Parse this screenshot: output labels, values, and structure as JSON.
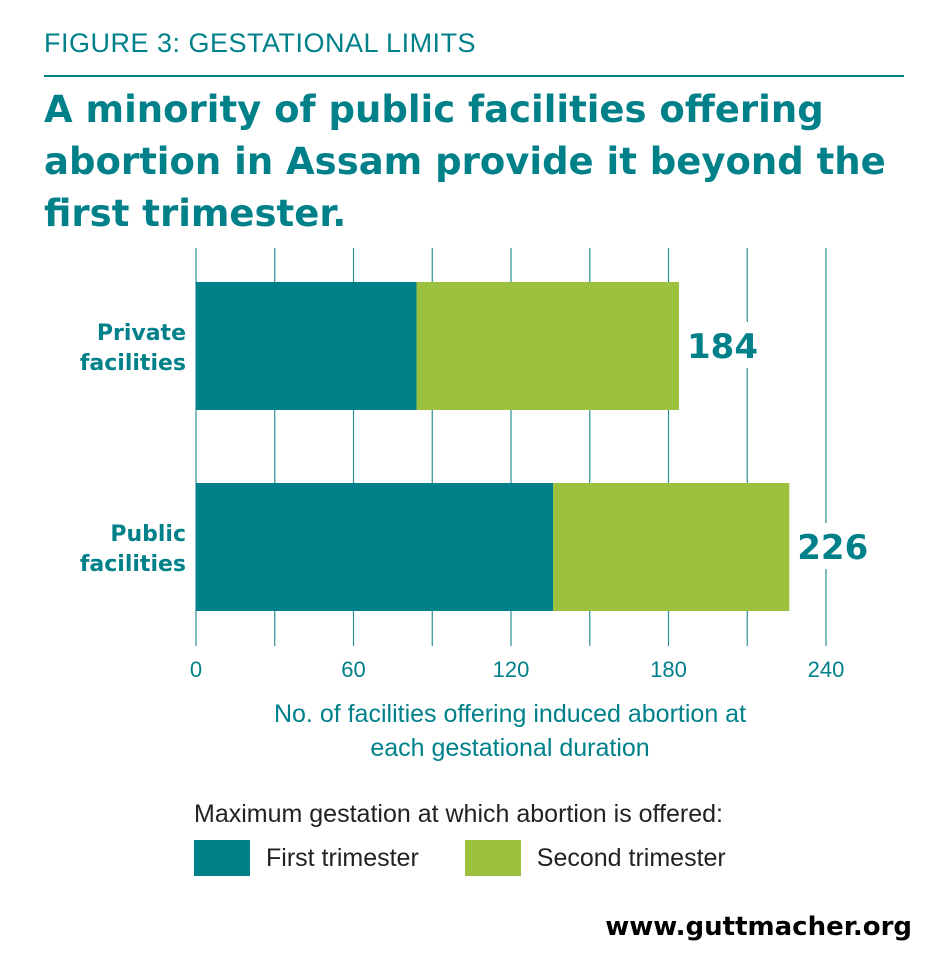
{
  "figure_label": "FIGURE 3: GESTATIONAL LIMITS",
  "headline": "A minority of public facilities offering abortion in Assam provide it beyond the first trimester.",
  "source": "www.guttmacher.org",
  "legend": {
    "title": "Maximum gestation at which abortion is offered:",
    "items": [
      {
        "label": "First trimester",
        "color": "#00818a"
      },
      {
        "label": "Second trimester",
        "color": "#9cc13e"
      }
    ]
  },
  "chart_data": {
    "type": "bar",
    "orientation": "horizontal",
    "stacked": true,
    "categories": [
      "Private facilities",
      "Public facilities"
    ],
    "category_lines": [
      [
        "Private",
        "facilities"
      ],
      [
        "Public",
        "facilities"
      ]
    ],
    "series": [
      {
        "name": "First trimester",
        "color": "#00818a",
        "values": [
          84,
          136
        ]
      },
      {
        "name": "Second trimester",
        "color": "#9cc13e",
        "values": [
          100,
          90
        ]
      }
    ],
    "totals": [
      184,
      226
    ],
    "xlabel": "No. of facilities offering induced abortion at each gestational duration",
    "xlim": [
      0,
      240
    ],
    "x_ticks": [
      0,
      60,
      120,
      180,
      240
    ],
    "grid": true,
    "legend_position": "bottom"
  }
}
